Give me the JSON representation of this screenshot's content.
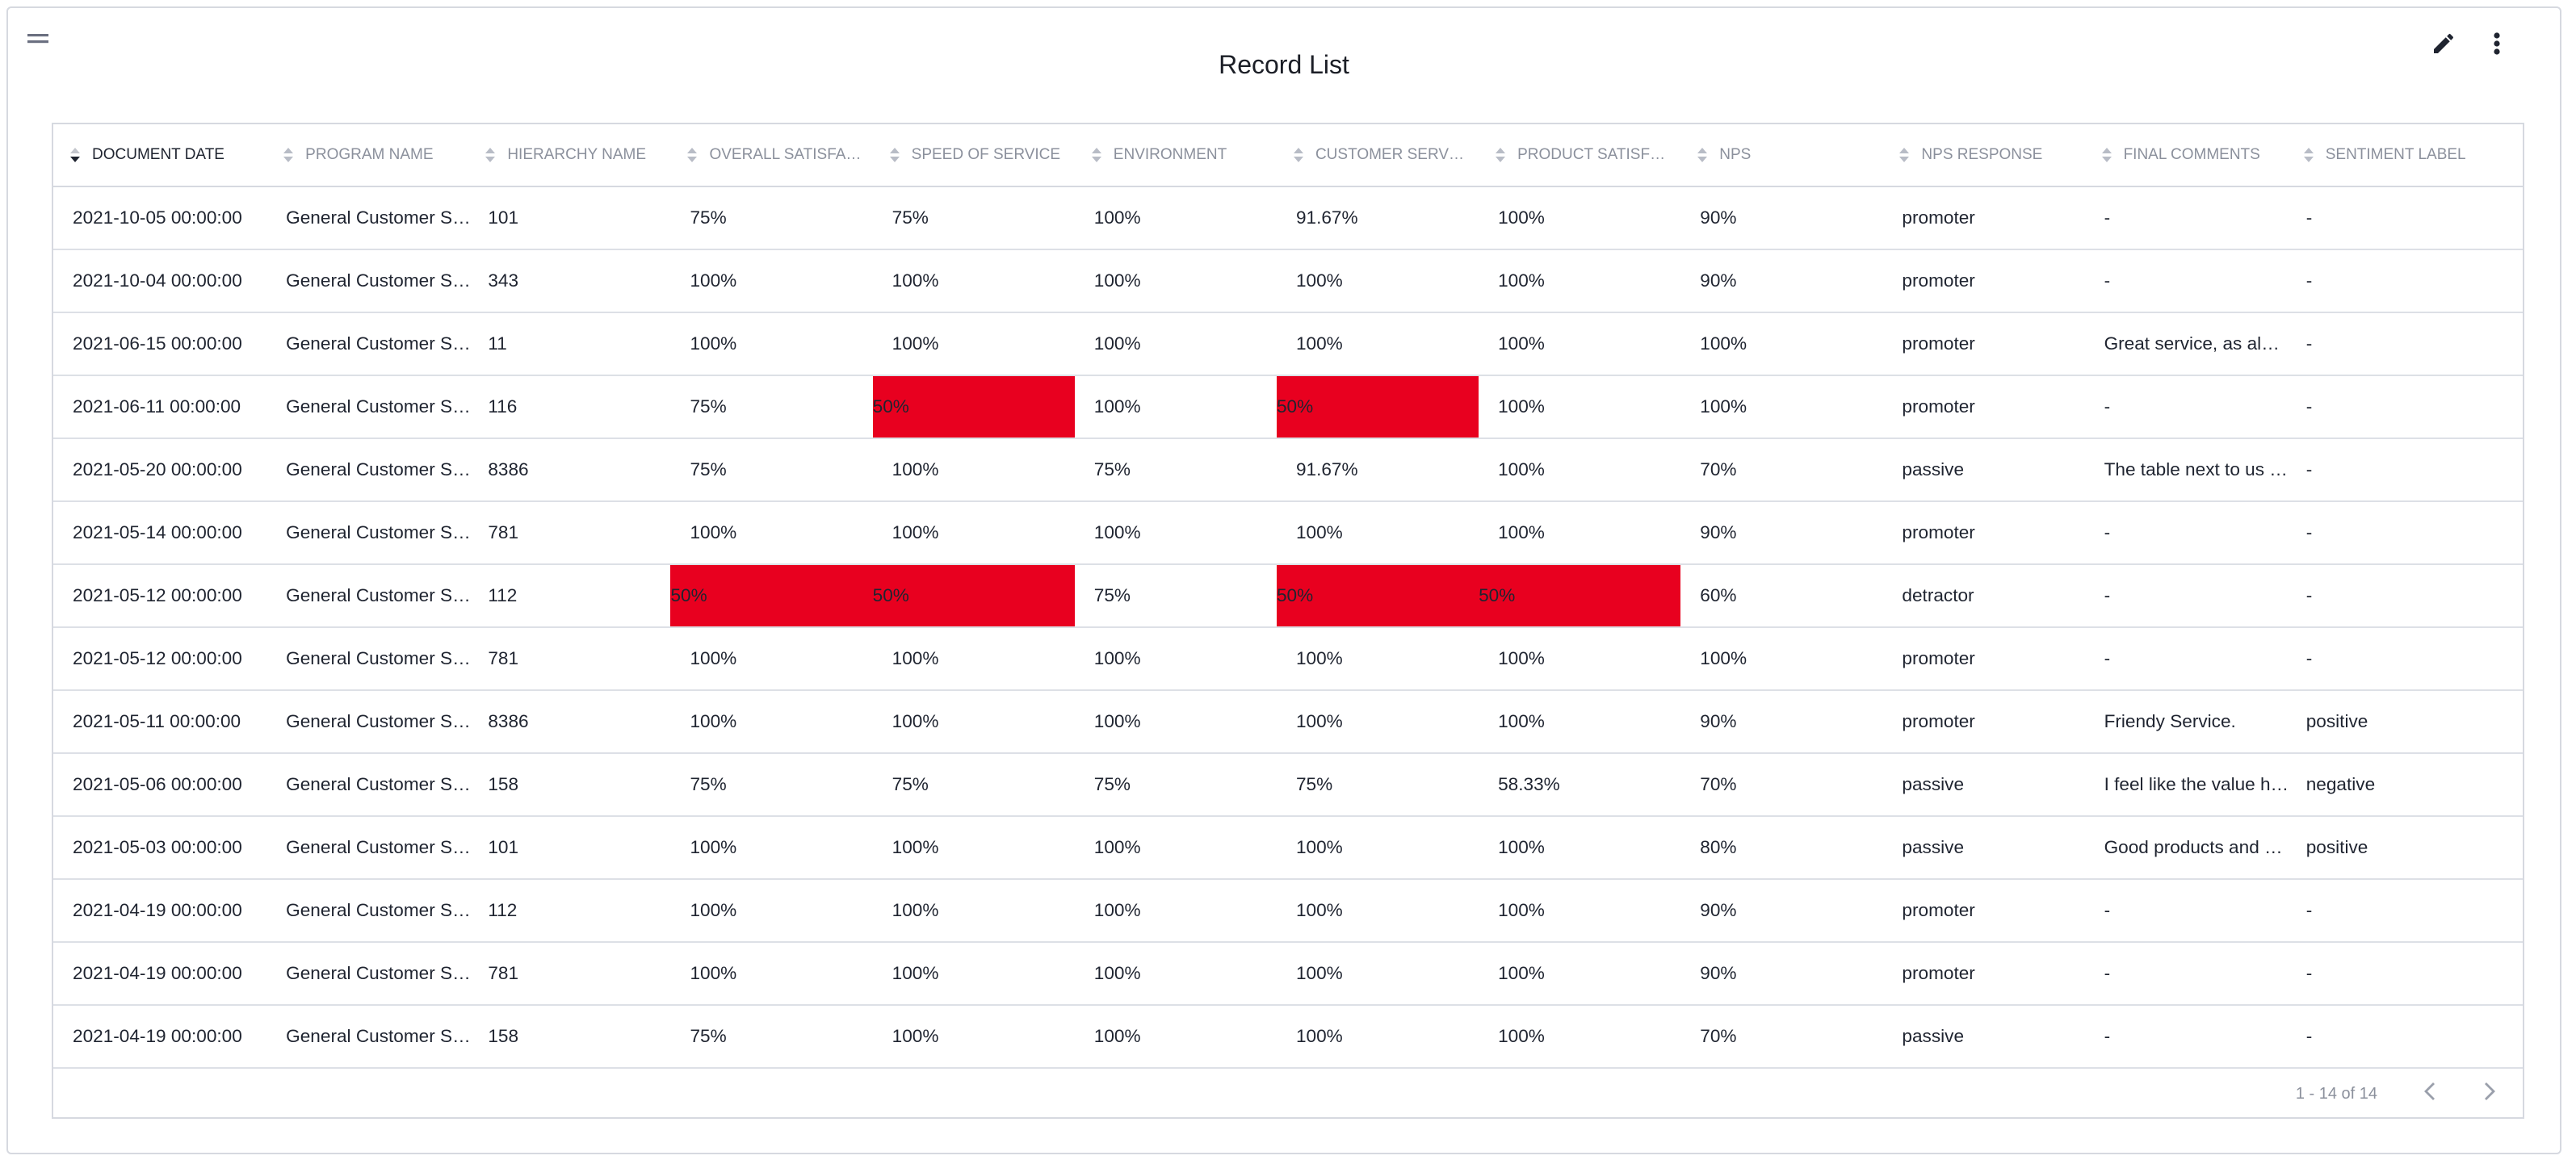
{
  "header": {
    "title": "Record List"
  },
  "table": {
    "columns": [
      "DOCUMENT DATE",
      "PROGRAM NAME",
      "HIERARCHY NAME",
      "OVERALL SATISFA…",
      "SPEED OF SERVICE",
      "ENVIRONMENT",
      "CUSTOMER SERV…",
      "PRODUCT SATISF…",
      "NPS",
      "NPS RESPONSE",
      "FINAL COMMENTS",
      "SENTIMENT LABEL"
    ],
    "rows": [
      [
        "2021-10-05 00:00:00",
        "General Customer S…",
        "101",
        "75%",
        "75%",
        "100%",
        "91.67%",
        "100%",
        "90%",
        "promoter",
        "-",
        "-"
      ],
      [
        "2021-10-04 00:00:00",
        "General Customer S…",
        "343",
        "100%",
        "100%",
        "100%",
        "100%",
        "100%",
        "90%",
        "promoter",
        "-",
        "-"
      ],
      [
        "2021-06-15 00:00:00",
        "General Customer S…",
        "11",
        "100%",
        "100%",
        "100%",
        "100%",
        "100%",
        "100%",
        "promoter",
        "Great service, as al…",
        "-"
      ],
      [
        "2021-06-11 00:00:00",
        "General Customer S…",
        "116",
        "75%",
        "50%",
        "100%",
        "50%",
        "100%",
        "100%",
        "promoter",
        "-",
        "-"
      ],
      [
        "2021-05-20 00:00:00",
        "General Customer S…",
        "8386",
        "75%",
        "100%",
        "75%",
        "91.67%",
        "100%",
        "70%",
        "passive",
        "The table next to us …",
        "-"
      ],
      [
        "2021-05-14 00:00:00",
        "General Customer S…",
        "781",
        "100%",
        "100%",
        "100%",
        "100%",
        "100%",
        "90%",
        "promoter",
        "-",
        "-"
      ],
      [
        "2021-05-12 00:00:00",
        "General Customer S…",
        "112",
        "50%",
        "50%",
        "75%",
        "50%",
        "50%",
        "60%",
        "detractor",
        "-",
        "-"
      ],
      [
        "2021-05-12 00:00:00",
        "General Customer S…",
        "781",
        "100%",
        "100%",
        "100%",
        "100%",
        "100%",
        "100%",
        "promoter",
        "-",
        "-"
      ],
      [
        "2021-05-11 00:00:00",
        "General Customer S…",
        "8386",
        "100%",
        "100%",
        "100%",
        "100%",
        "100%",
        "90%",
        "promoter",
        "Friendy Service.",
        "positive"
      ],
      [
        "2021-05-06 00:00:00",
        "General Customer S…",
        "158",
        "75%",
        "75%",
        "75%",
        "75%",
        "58.33%",
        "70%",
        "passive",
        "I feel like the value h…",
        "negative"
      ],
      [
        "2021-05-03 00:00:00",
        "General Customer S…",
        "101",
        "100%",
        "100%",
        "100%",
        "100%",
        "100%",
        "80%",
        "passive",
        "Good products and …",
        "positive"
      ],
      [
        "2021-04-19 00:00:00",
        "General Customer S…",
        "112",
        "100%",
        "100%",
        "100%",
        "100%",
        "100%",
        "90%",
        "promoter",
        "-",
        "-"
      ],
      [
        "2021-04-19 00:00:00",
        "General Customer S…",
        "781",
        "100%",
        "100%",
        "100%",
        "100%",
        "100%",
        "90%",
        "promoter",
        "-",
        "-"
      ],
      [
        "2021-04-19 00:00:00",
        "General Customer S…",
        "158",
        "75%",
        "100%",
        "100%",
        "100%",
        "100%",
        "70%",
        "passive",
        "-",
        "-"
      ]
    ],
    "highlights": [
      [
        3,
        4
      ],
      [
        3,
        6
      ],
      [
        6,
        3
      ],
      [
        6,
        4
      ],
      [
        6,
        6
      ],
      [
        6,
        7
      ]
    ]
  },
  "footer": {
    "pagination": "1 - 14 of 14"
  }
}
